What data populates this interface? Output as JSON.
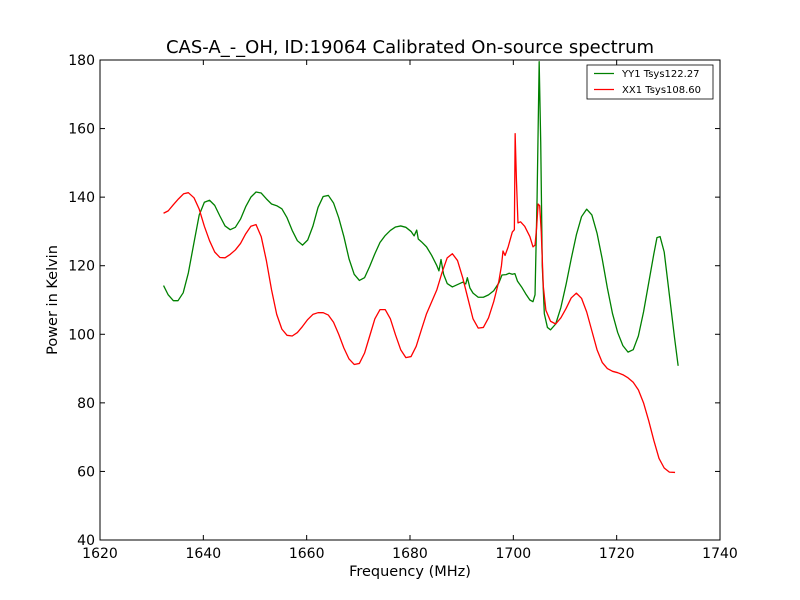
{
  "chart_data": {
    "type": "line",
    "title": "CAS-A_-_OH, ID:19064 Calibrated On-source spectrum",
    "xlabel": "Frequency (MHz)",
    "ylabel": "Power in Kelvin",
    "xlim": [
      1620,
      1740
    ],
    "ylim": [
      40,
      180
    ],
    "xticks": [
      "1620",
      "1640",
      "1660",
      "1680",
      "1700",
      "1720",
      "1740"
    ],
    "yticks": [
      "40",
      "60",
      "80",
      "100",
      "120",
      "140",
      "160",
      "180"
    ],
    "grid": false,
    "legend_position": "top-right",
    "series": [
      {
        "name": "YY1 Tsys122.27",
        "color": "#008000",
        "points": [
          [
            1632.3,
            114.2
          ],
          [
            1633.2,
            111.5
          ],
          [
            1634.2,
            109.8
          ],
          [
            1635.1,
            109.8
          ],
          [
            1636.1,
            112.1
          ],
          [
            1637.1,
            117.9
          ],
          [
            1638.2,
            126.8
          ],
          [
            1639.2,
            134.8
          ],
          [
            1640.2,
            138.5
          ],
          [
            1641.2,
            139.1
          ],
          [
            1642.2,
            137.6
          ],
          [
            1643.2,
            134.5
          ],
          [
            1644.2,
            131.6
          ],
          [
            1645.2,
            130.5
          ],
          [
            1646.2,
            131.2
          ],
          [
            1647.2,
            133.6
          ],
          [
            1648.2,
            137.2
          ],
          [
            1649.2,
            140.0
          ],
          [
            1650.2,
            141.5
          ],
          [
            1651.2,
            141.2
          ],
          [
            1652.2,
            139.5
          ],
          [
            1653.2,
            138.0
          ],
          [
            1654.2,
            137.5
          ],
          [
            1655.2,
            136.6
          ],
          [
            1656.2,
            134.0
          ],
          [
            1657.2,
            130.3
          ],
          [
            1658.2,
            127.3
          ],
          [
            1659.2,
            126.0
          ],
          [
            1660.2,
            127.5
          ],
          [
            1661.2,
            131.5
          ],
          [
            1662.2,
            137.0
          ],
          [
            1663.2,
            140.2
          ],
          [
            1664.2,
            140.5
          ],
          [
            1665.2,
            138.3
          ],
          [
            1666.2,
            134.0
          ],
          [
            1667.2,
            128.5
          ],
          [
            1668.2,
            122.0
          ],
          [
            1669.2,
            117.5
          ],
          [
            1670.2,
            115.7
          ],
          [
            1671.2,
            116.5
          ],
          [
            1672.2,
            119.8
          ],
          [
            1673.2,
            123.5
          ],
          [
            1674.2,
            126.8
          ],
          [
            1675.2,
            128.8
          ],
          [
            1676.2,
            130.3
          ],
          [
            1677.2,
            131.3
          ],
          [
            1678.2,
            131.6
          ],
          [
            1679.2,
            131.2
          ],
          [
            1680.2,
            130.0
          ],
          [
            1680.8,
            128.7
          ],
          [
            1681.3,
            130.4
          ],
          [
            1681.6,
            127.8
          ],
          [
            1682.2,
            127.0
          ],
          [
            1683.2,
            125.5
          ],
          [
            1684.2,
            123.0
          ],
          [
            1685.2,
            120.0
          ],
          [
            1685.6,
            118.5
          ],
          [
            1686.0,
            121.8
          ],
          [
            1686.5,
            117.5
          ],
          [
            1687.2,
            114.8
          ],
          [
            1688.2,
            113.8
          ],
          [
            1689.2,
            114.5
          ],
          [
            1690.2,
            115.2
          ],
          [
            1690.8,
            114.7
          ],
          [
            1691.1,
            116.5
          ],
          [
            1691.6,
            113.5
          ],
          [
            1692.2,
            112.0
          ],
          [
            1693.2,
            110.8
          ],
          [
            1694.2,
            110.8
          ],
          [
            1695.2,
            111.5
          ],
          [
            1696.2,
            112.7
          ],
          [
            1697.2,
            115.0
          ],
          [
            1697.8,
            117.3
          ],
          [
            1698.6,
            117.4
          ],
          [
            1699.2,
            117.8
          ],
          [
            1699.8,
            117.5
          ],
          [
            1700.3,
            117.7
          ],
          [
            1700.8,
            115.5
          ],
          [
            1701.6,
            113.8
          ],
          [
            1702.4,
            111.8
          ],
          [
            1703.2,
            110.0
          ],
          [
            1703.8,
            109.5
          ],
          [
            1704.2,
            111.5
          ],
          [
            1704.6,
            140.0
          ],
          [
            1705.0,
            179.5
          ],
          [
            1705.3,
            156.0
          ],
          [
            1705.6,
            120.0
          ],
          [
            1706.0,
            106.0
          ],
          [
            1706.6,
            102.0
          ],
          [
            1707.2,
            101.3
          ],
          [
            1708.2,
            103.0
          ],
          [
            1709.2,
            107.8
          ],
          [
            1710.2,
            114.5
          ],
          [
            1711.2,
            122.0
          ],
          [
            1712.2,
            129.0
          ],
          [
            1713.2,
            134.3
          ],
          [
            1714.2,
            136.5
          ],
          [
            1715.2,
            134.8
          ],
          [
            1716.2,
            129.5
          ],
          [
            1717.2,
            122.0
          ],
          [
            1718.2,
            113.5
          ],
          [
            1719.2,
            106.0
          ],
          [
            1720.2,
            100.5
          ],
          [
            1721.2,
            96.7
          ],
          [
            1722.2,
            94.8
          ],
          [
            1723.2,
            95.5
          ],
          [
            1724.2,
            99.5
          ],
          [
            1725.2,
            106.5
          ],
          [
            1726.2,
            115.0
          ],
          [
            1727.2,
            123.5
          ],
          [
            1727.8,
            128.2
          ],
          [
            1728.4,
            128.5
          ],
          [
            1729.2,
            124.0
          ],
          [
            1730.2,
            111.5
          ],
          [
            1731.2,
            99.0
          ],
          [
            1731.9,
            90.8
          ]
        ]
      },
      {
        "name": "XX1 Tsys108.60",
        "color": "#ff0000",
        "points": [
          [
            1632.3,
            135.3
          ],
          [
            1633.2,
            136.0
          ],
          [
            1634.2,
            137.8
          ],
          [
            1635.2,
            139.5
          ],
          [
            1636.2,
            141.0
          ],
          [
            1637.1,
            141.3
          ],
          [
            1638.2,
            139.8
          ],
          [
            1639.2,
            136.5
          ],
          [
            1640.2,
            131.5
          ],
          [
            1641.2,
            127.3
          ],
          [
            1642.2,
            124.0
          ],
          [
            1643.2,
            122.4
          ],
          [
            1644.2,
            122.3
          ],
          [
            1645.2,
            123.3
          ],
          [
            1646.2,
            124.6
          ],
          [
            1647.2,
            126.5
          ],
          [
            1648.2,
            129.3
          ],
          [
            1649.2,
            131.5
          ],
          [
            1650.2,
            132.0
          ],
          [
            1651.2,
            128.5
          ],
          [
            1652.2,
            121.5
          ],
          [
            1653.2,
            113.0
          ],
          [
            1654.2,
            105.8
          ],
          [
            1655.2,
            101.5
          ],
          [
            1656.2,
            99.7
          ],
          [
            1657.2,
            99.5
          ],
          [
            1658.2,
            100.5
          ],
          [
            1659.2,
            102.3
          ],
          [
            1660.2,
            104.3
          ],
          [
            1661.2,
            105.8
          ],
          [
            1662.2,
            106.3
          ],
          [
            1663.2,
            106.3
          ],
          [
            1664.2,
            105.6
          ],
          [
            1665.2,
            103.5
          ],
          [
            1666.2,
            100.0
          ],
          [
            1667.2,
            96.0
          ],
          [
            1668.2,
            92.8
          ],
          [
            1669.2,
            91.2
          ],
          [
            1670.2,
            91.5
          ],
          [
            1671.2,
            94.5
          ],
          [
            1672.2,
            99.5
          ],
          [
            1673.2,
            104.5
          ],
          [
            1674.2,
            107.2
          ],
          [
            1675.2,
            107.2
          ],
          [
            1676.2,
            104.5
          ],
          [
            1677.2,
            99.8
          ],
          [
            1678.2,
            95.5
          ],
          [
            1679.2,
            93.2
          ],
          [
            1680.2,
            93.5
          ],
          [
            1681.2,
            96.5
          ],
          [
            1682.2,
            101.3
          ],
          [
            1683.2,
            106.0
          ],
          [
            1684.2,
            109.5
          ],
          [
            1685.2,
            113.0
          ],
          [
            1686.2,
            118.0
          ],
          [
            1687.2,
            122.3
          ],
          [
            1688.2,
            123.5
          ],
          [
            1689.2,
            121.5
          ],
          [
            1690.2,
            116.5
          ],
          [
            1691.2,
            110.5
          ],
          [
            1692.2,
            104.5
          ],
          [
            1693.2,
            101.8
          ],
          [
            1694.2,
            102.0
          ],
          [
            1695.2,
            104.8
          ],
          [
            1696.2,
            109.5
          ],
          [
            1697.2,
            115.5
          ],
          [
            1697.7,
            120.0
          ],
          [
            1698.0,
            124.3
          ],
          [
            1698.4,
            123.0
          ],
          [
            1699.0,
            125.5
          ],
          [
            1699.8,
            129.8
          ],
          [
            1700.2,
            130.5
          ],
          [
            1700.35,
            158.5
          ],
          [
            1700.6,
            145.0
          ],
          [
            1700.9,
            132.5
          ],
          [
            1701.4,
            132.8
          ],
          [
            1702.2,
            131.5
          ],
          [
            1703.2,
            128.5
          ],
          [
            1703.8,
            125.5
          ],
          [
            1704.2,
            126.0
          ],
          [
            1704.5,
            131.0
          ],
          [
            1704.8,
            138.0
          ],
          [
            1705.1,
            137.5
          ],
          [
            1705.4,
            130.0
          ],
          [
            1705.8,
            114.0
          ],
          [
            1706.3,
            107.0
          ],
          [
            1707.2,
            103.8
          ],
          [
            1708.2,
            103.0
          ],
          [
            1709.2,
            104.8
          ],
          [
            1710.2,
            107.5
          ],
          [
            1711.2,
            110.6
          ],
          [
            1712.2,
            112.0
          ],
          [
            1713.2,
            110.5
          ],
          [
            1714.2,
            106.5
          ],
          [
            1715.2,
            101.0
          ],
          [
            1716.2,
            95.5
          ],
          [
            1717.2,
            91.8
          ],
          [
            1718.2,
            90.0
          ],
          [
            1719.2,
            89.2
          ],
          [
            1720.2,
            88.8
          ],
          [
            1721.2,
            88.2
          ],
          [
            1722.2,
            87.3
          ],
          [
            1723.2,
            86.0
          ],
          [
            1724.2,
            83.8
          ],
          [
            1725.2,
            80.0
          ],
          [
            1726.2,
            74.8
          ],
          [
            1727.2,
            69.0
          ],
          [
            1728.2,
            63.8
          ],
          [
            1729.2,
            61.0
          ],
          [
            1730.2,
            59.8
          ],
          [
            1731.3,
            59.7
          ]
        ]
      }
    ]
  }
}
